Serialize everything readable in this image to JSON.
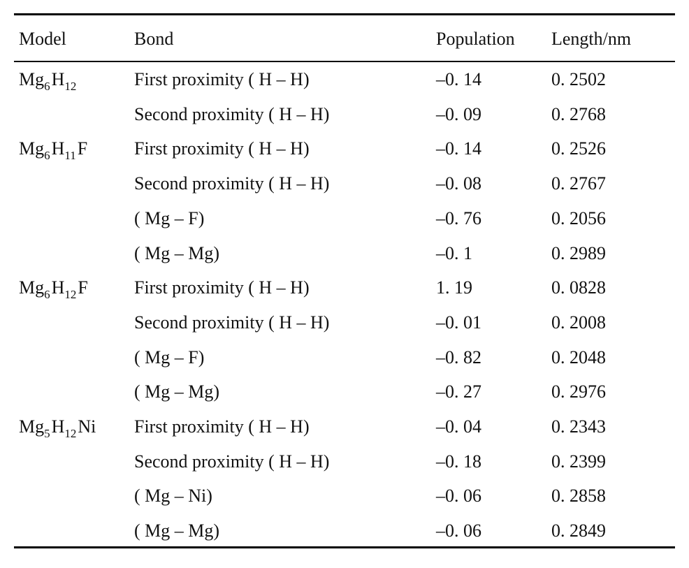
{
  "headers": {
    "model": "Model",
    "bond": "Bond",
    "population": "Population",
    "length": "Length/nm"
  },
  "rows": [
    {
      "model": [
        {
          "t": "Mg",
          "s": "6"
        },
        {
          "t": "H",
          "s": "12"
        }
      ],
      "bond": "First proximity ( H – H)",
      "population": "–0. 14",
      "length": "0. 2502"
    },
    {
      "model": null,
      "bond": "Second proximity ( H – H)",
      "population": "–0. 09",
      "length": "0. 2768"
    },
    {
      "model": [
        {
          "t": "Mg",
          "s": "6"
        },
        {
          "t": "H",
          "s": "11"
        },
        {
          "t": "F",
          "s": ""
        }
      ],
      "bond": "First proximity ( H – H)",
      "population": "–0. 14",
      "length": "0. 2526"
    },
    {
      "model": null,
      "bond": "Second proximity ( H – H)",
      "population": "–0. 08",
      "length": "0. 2767"
    },
    {
      "model": null,
      "bond": "( Mg – F)",
      "population": "–0. 76",
      "length": "0. 2056"
    },
    {
      "model": null,
      "bond": "( Mg – Mg)",
      "population": "–0. 1",
      "length": "0. 2989"
    },
    {
      "model": [
        {
          "t": "Mg",
          "s": "6"
        },
        {
          "t": "H",
          "s": "12"
        },
        {
          "t": "F",
          "s": ""
        }
      ],
      "bond": "First proximity ( H – H)",
      "population": "1. 19",
      "length": "0. 0828"
    },
    {
      "model": null,
      "bond": "Second proximity ( H – H)",
      "population": "–0. 01",
      "length": "0. 2008"
    },
    {
      "model": null,
      "bond": "( Mg – F)",
      "population": "–0. 82",
      "length": "0. 2048"
    },
    {
      "model": null,
      "bond": "( Mg – Mg)",
      "population": "–0. 27",
      "length": "0. 2976"
    },
    {
      "model": [
        {
          "t": "Mg",
          "s": "5"
        },
        {
          "t": "H",
          "s": "12"
        },
        {
          "t": "Ni",
          "s": ""
        }
      ],
      "bond": "First proximity ( H – H)",
      "population": "–0. 04",
      "length": "0. 2343"
    },
    {
      "model": null,
      "bond": "Second proximity ( H – H)",
      "population": "–0. 18",
      "length": "0. 2399"
    },
    {
      "model": null,
      "bond": "( Mg – Ni)",
      "population": "–0. 06",
      "length": "0. 2858"
    },
    {
      "model": null,
      "bond": "( Mg – Mg)",
      "population": "–0. 06",
      "length": "0. 2849"
    }
  ]
}
